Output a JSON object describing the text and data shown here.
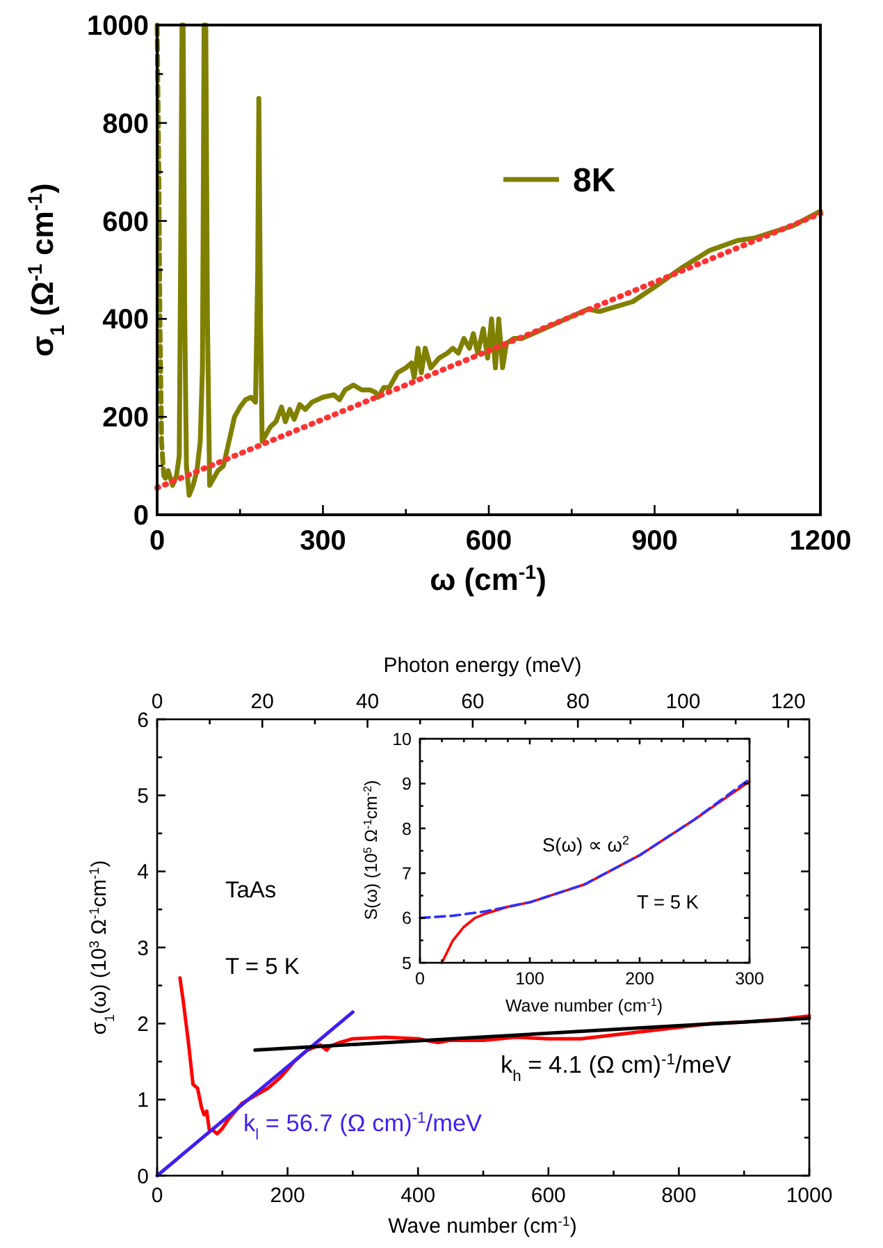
{
  "chart_data": [
    {
      "type": "line",
      "xlabel": "ω (cm$^{-1}$)",
      "ylabel": "σ$_{1}$ (Ω$^{-1}$ cm$^{-1}$)",
      "xlim": [
        0,
        1200
      ],
      "ylim": [
        0,
        1000
      ],
      "xticks": [
        0,
        {
          "value": 150,
          "label": null
        },
        300,
        {
          "value": 450,
          "label": null
        },
        600,
        {
          "value": 750,
          "label": null
        },
        900,
        {
          "value": 1050,
          "label": null
        },
        1200
      ],
      "yticks": [
        0,
        {
          "value": 100,
          "label": null
        },
        200,
        {
          "value": 300,
          "label": null
        },
        400,
        {
          "value": 500,
          "label": null
        },
        600,
        {
          "value": 700,
          "label": null
        },
        800,
        {
          "value": 900,
          "label": null
        },
        1000
      ],
      "legend": "top right",
      "series": [
        {
          "color": "#808000",
          "line_style": "dashed",
          "x": [
            0,
            3,
            5,
            8,
            12,
            15
          ],
          "values": [
            1000,
            700,
            400,
            150,
            80,
            75
          ]
        },
        {
          "name": "8K",
          "color": "#808000",
          "line_style": "solid",
          "x": [
            15,
            20,
            28,
            35,
            40,
            43,
            45,
            47,
            50,
            53,
            58,
            65,
            72,
            78,
            82,
            85,
            88,
            91,
            95,
            100,
            110,
            120,
            130,
            140,
            150,
            160,
            170,
            178,
            182,
            184,
            187,
            190,
            195,
            205,
            215,
            225,
            232,
            240,
            248,
            258,
            268,
            280,
            300,
            320,
            330,
            340,
            355,
            370,
            385,
            395,
            400,
            410,
            420,
            435,
            450,
            460,
            465,
            472,
            478,
            485,
            495,
            510,
            525,
            535,
            545,
            555,
            565,
            572,
            580,
            590,
            598,
            605,
            612,
            618,
            625,
            632,
            645,
            660,
            700,
            740,
            780,
            800,
            860,
            900,
            950,
            1000,
            1050,
            1080,
            1150,
            1200
          ],
          "values": [
            75,
            90,
            60,
            80,
            120,
            600,
            1000,
            1000,
            400,
            100,
            40,
            60,
            90,
            150,
            300,
            1000,
            1000,
            400,
            60,
            70,
            90,
            100,
            150,
            200,
            220,
            235,
            240,
            230,
            500,
            850,
            400,
            150,
            160,
            180,
            190,
            220,
            190,
            215,
            195,
            225,
            215,
            230,
            240,
            245,
            235,
            255,
            265,
            255,
            255,
            250,
            240,
            260,
            260,
            290,
            300,
            310,
            280,
            340,
            290,
            340,
            300,
            320,
            330,
            340,
            330,
            360,
            340,
            370,
            330,
            380,
            320,
            400,
            300,
            400,
            300,
            350,
            360,
            360,
            380,
            400,
            420,
            415,
            435,
            465,
            505,
            540,
            560,
            565,
            590,
            620
          ]
        },
        {
          "color": "#ff3333",
          "line_style": "dotted",
          "x": [
            0,
            1200
          ],
          "values": [
            55,
            615
          ]
        }
      ]
    },
    {
      "type": "line",
      "xlabel": "Wave number (cm$^{-1}$)",
      "ylabel": "σ$_{1}$(ω) (10$^{3}$ Ω$^{-1}$cm$^{-1}$)",
      "x2label": "Photon energy (meV)",
      "xlim": [
        0,
        1000
      ],
      "ylim": [
        0,
        6
      ],
      "x2lim": [
        0,
        124
      ],
      "xticks": [
        0,
        {
          "value": 100,
          "label": null
        },
        200,
        {
          "value": 300,
          "label": null
        },
        400,
        {
          "value": 500,
          "label": null
        },
        600,
        {
          "value": 700,
          "label": null
        },
        800,
        {
          "value": 900,
          "label": null
        },
        1000
      ],
      "yticks": [
        0,
        {
          "value": 0.5,
          "label": null
        },
        1,
        {
          "value": 1.5,
          "label": null
        },
        2,
        {
          "value": 2.5,
          "label": null
        },
        3,
        {
          "value": 3.5,
          "label": null
        },
        4,
        {
          "value": 4.5,
          "label": null
        },
        5,
        {
          "value": 5.5,
          "label": null
        },
        6
      ],
      "x2ticks": [
        0,
        {
          "value": 10,
          "label": null
        },
        20,
        {
          "value": 30,
          "label": null
        },
        40,
        {
          "value": 50,
          "label": null
        },
        60,
        {
          "value": 70,
          "label": null
        },
        80,
        {
          "value": 90,
          "label": null
        },
        100,
        {
          "value": 110,
          "label": null
        },
        120
      ],
      "legend": false,
      "annotations": [
        "TaAs",
        "T = 5 K"
      ],
      "series": [
        {
          "color": "#ff0000",
          "line_style": "solid",
          "x": [
            35,
            40,
            48,
            55,
            62,
            68,
            72,
            76,
            80,
            85,
            92,
            100,
            110,
            120,
            130,
            150,
            170,
            190,
            210,
            230,
            250,
            260,
            265,
            280,
            300,
            350,
            400,
            430,
            450,
            500,
            550,
            600,
            650,
            700,
            750,
            800,
            850,
            900,
            950,
            1000
          ],
          "values": [
            2.6,
            2.3,
            1.75,
            1.2,
            1.15,
            0.9,
            0.8,
            0.85,
            0.6,
            0.6,
            0.55,
            0.62,
            0.75,
            0.85,
            0.95,
            1.05,
            1.15,
            1.3,
            1.5,
            1.65,
            1.72,
            1.65,
            1.7,
            1.75,
            1.8,
            1.82,
            1.8,
            1.75,
            1.78,
            1.78,
            1.82,
            1.8,
            1.8,
            1.85,
            1.9,
            1.95,
            2.0,
            2.02,
            2.05,
            2.1
          ]
        },
        {
          "name": "k$_{l}$ = 56.7 (Ω cm)$^{-1}$/meV",
          "color": "#3f1ff0",
          "line_style": "solid",
          "x": [
            0,
            300
          ],
          "values": [
            0,
            2.15
          ]
        },
        {
          "name": "k$_{h}$ = 4.1 (Ω cm)$^{-1}$/meV",
          "color": "#000000",
          "line_style": "solid",
          "x": [
            150,
            1000
          ],
          "values": [
            1.65,
            2.07
          ]
        }
      ]
    },
    {
      "type": "line",
      "xlabel": "Wave number (cm$^{-1}$)",
      "ylabel": "S(ω) (10$^{5}$ Ω$^{-1}$cm$^{-2}$)",
      "xlim": [
        0,
        300
      ],
      "ylim": [
        5,
        10
      ],
      "xticks": [
        0,
        {
          "value": 20,
          "label": null
        },
        {
          "value": 40,
          "label": null
        },
        {
          "value": 60,
          "label": null
        },
        {
          "value": 80,
          "label": null
        },
        100,
        {
          "value": 120,
          "label": null
        },
        {
          "value": 140,
          "label": null
        },
        {
          "value": 160,
          "label": null
        },
        {
          "value": 180,
          "label": null
        },
        200,
        {
          "value": 220,
          "label": null
        },
        {
          "value": 240,
          "label": null
        },
        {
          "value": 260,
          "label": null
        },
        {
          "value": 280,
          "label": null
        },
        300
      ],
      "yticks": [
        5,
        {
          "value": 5.5,
          "label": null
        },
        6,
        {
          "value": 6.5,
          "label": null
        },
        7,
        {
          "value": 7.5,
          "label": null
        },
        8,
        {
          "value": 8.5,
          "label": null
        },
        9,
        {
          "value": 9.5,
          "label": null
        },
        10
      ],
      "legend": false,
      "annotations": [
        "S(ω) ∝ ω$^{2}$",
        "T = 5 K"
      ],
      "series": [
        {
          "color": "#ff0000",
          "line_style": "solid",
          "x": [
            20,
            30,
            40,
            50,
            60,
            80,
            100,
            150,
            200,
            250,
            300
          ],
          "values": [
            5,
            5.5,
            5.8,
            6.0,
            6.1,
            6.25,
            6.35,
            6.75,
            7.4,
            8.2,
            9.05
          ]
        },
        {
          "color": "#3030ff",
          "line_style": "dashed",
          "x": [
            0,
            30,
            60,
            80,
            100,
            150,
            200,
            250,
            300
          ],
          "values": [
            6.0,
            6.05,
            6.15,
            6.25,
            6.35,
            6.75,
            7.4,
            8.2,
            9.1
          ]
        }
      ]
    }
  ]
}
